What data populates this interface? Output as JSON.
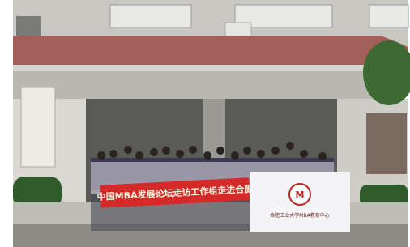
{
  "photo": {
    "banner_red": {
      "text": "中国MBA发展论坛走访工作组走进合肥"
    },
    "banner_white": {
      "text": "合肥工业大学MBA教育中心"
    }
  }
}
